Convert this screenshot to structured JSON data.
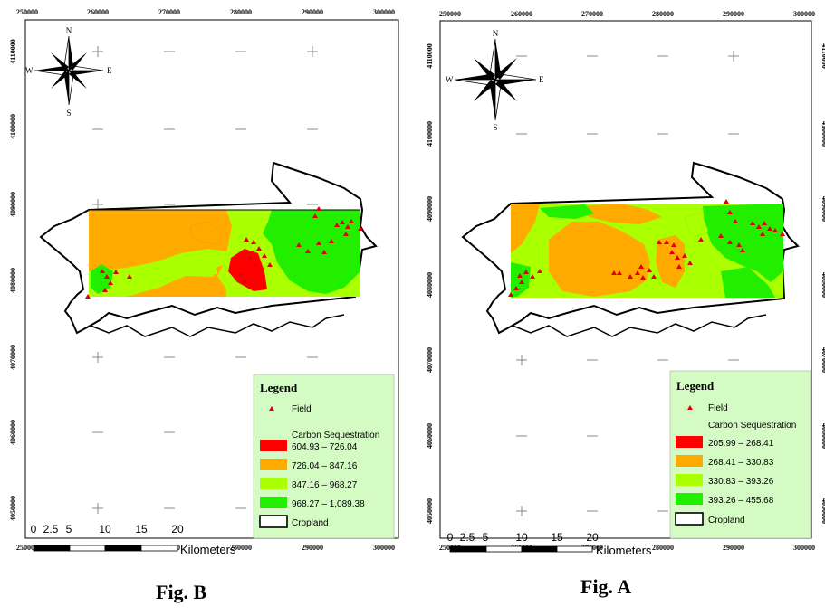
{
  "figures": {
    "B": {
      "caption": "Fig. B",
      "x_ticks": [
        "250000",
        "260000",
        "270000",
        "280000",
        "290000",
        "300000"
      ],
      "y_ticks": [
        "4110000",
        "4100000",
        "4090000",
        "4080000",
        "4070000",
        "4060000",
        "4050000"
      ],
      "compass": {
        "n": "N",
        "s": "S",
        "e": "E",
        "w": "W"
      },
      "legend": {
        "title": "Legend",
        "field_label": "Field",
        "ramp_title": "Carbon Sequestration",
        "classes": [
          {
            "label": "604.93 – 726.04",
            "color": "#ff0000"
          },
          {
            "label": "726.04 – 847.16",
            "color": "#ffaa00"
          },
          {
            "label": "847.16 – 968.27",
            "color": "#aaff00"
          },
          {
            "label": "968.27 – 1,089.38",
            "color": "#22ee00"
          }
        ],
        "cropland_label": "Cropland"
      },
      "scale": {
        "ticks": [
          "0",
          "2.5",
          "5",
          "10",
          "15",
          "20"
        ],
        "unit": "Kilometers"
      }
    },
    "A": {
      "caption": "Fig. A",
      "x_ticks": [
        "250000",
        "260000",
        "270000",
        "280000",
        "290000",
        "300000"
      ],
      "y_ticks": [
        "4110000",
        "4100000",
        "4090000",
        "4080000",
        "4070000",
        "4060000",
        "4050000"
      ],
      "compass": {
        "n": "N",
        "s": "S",
        "e": "E",
        "w": "W"
      },
      "legend": {
        "title": "Legend",
        "field_label": "Field",
        "ramp_title": "Carbon Sequestration",
        "classes": [
          {
            "label": "205.99 – 268.41",
            "color": "#ff0000"
          },
          {
            "label": "268.41 – 330.83",
            "color": "#ffaa00"
          },
          {
            "label": "330.83 – 393.26",
            "color": "#aaff00"
          },
          {
            "label": "393.26 – 455.68",
            "color": "#22ee00"
          }
        ],
        "cropland_label": "Cropland"
      },
      "scale": {
        "ticks": [
          "0",
          "2.5",
          "5",
          "10",
          "15",
          "20"
        ],
        "unit": "Kilometers"
      }
    }
  },
  "colors": {
    "legend_bg": "#d4fbc4",
    "field_marker": "#e00000",
    "outline": "#000000"
  }
}
